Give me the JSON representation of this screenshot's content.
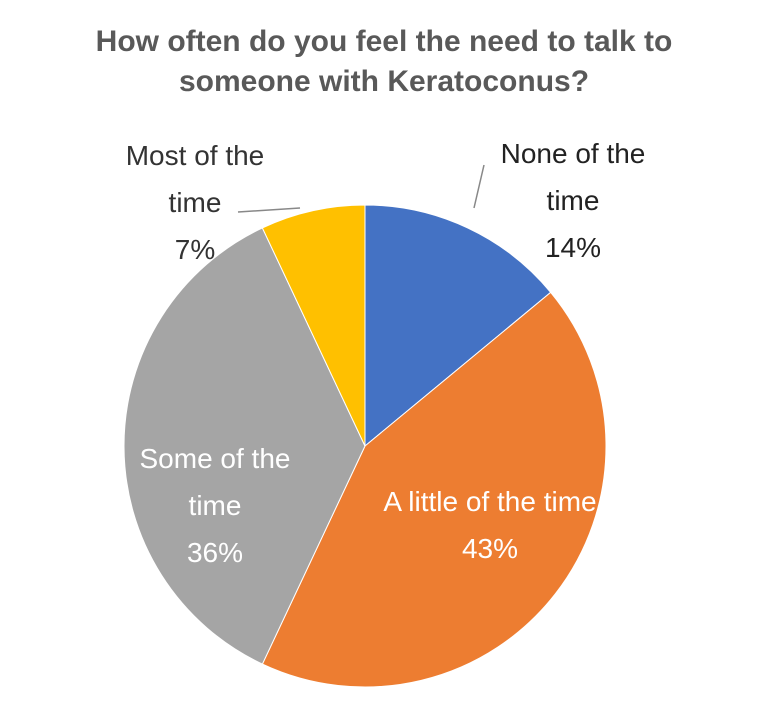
{
  "chart_data": {
    "type": "pie",
    "title": "How often do you feel the need to talk to someone with Keratoconus?",
    "categories": [
      "None of the time",
      "A little of the time",
      "Some of the time",
      "Most of the time"
    ],
    "values": [
      14,
      43,
      36,
      7
    ],
    "value_labels": [
      "14%",
      "43%",
      "36%",
      "7%"
    ],
    "colors": [
      "#4472c4",
      "#ed7d31",
      "#a5a5a5",
      "#ffc000"
    ]
  }
}
